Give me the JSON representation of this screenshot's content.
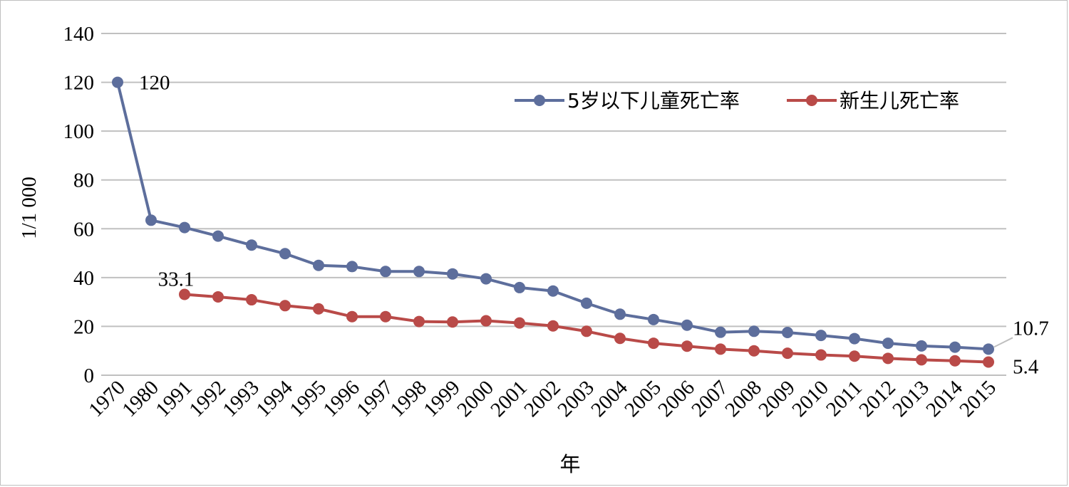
{
  "chart_data": {
    "type": "line",
    "xlabel": "年",
    "ylabel": "1/1 000",
    "ylim": [
      0,
      140
    ],
    "yticks": [
      "0",
      "20",
      "40",
      "60",
      "80",
      "100",
      "120",
      "140"
    ],
    "grid": true,
    "legend_position": "top-right",
    "categories": [
      "1970",
      "1980",
      "1991",
      "1992",
      "1993",
      "1994",
      "1995",
      "1996",
      "1997",
      "1998",
      "1999",
      "2000",
      "2001",
      "2002",
      "2003",
      "2004",
      "2005",
      "2006",
      "2007",
      "2008",
      "2009",
      "2010",
      "2011",
      "2012",
      "2013",
      "2014",
      "2015"
    ],
    "series": [
      {
        "name": "5岁以下儿童死亡率",
        "color": "#5d6e9c",
        "values": [
          120,
          63.5,
          60.5,
          57,
          53.3,
          49.8,
          45,
          44.5,
          42.5,
          42.5,
          41.5,
          39.5,
          35.9,
          34.5,
          29.5,
          25,
          22.8,
          20.5,
          17.6,
          18,
          17.5,
          16.3,
          15,
          13.1,
          12,
          11.5,
          10.7
        ]
      },
      {
        "name": "新生儿死亡率",
        "color": "#b94a48",
        "values": [
          null,
          null,
          33.1,
          32.1,
          30.9,
          28.5,
          27.2,
          24,
          24,
          22,
          21.8,
          22.3,
          21.4,
          20.2,
          18,
          15.1,
          13.1,
          11.9,
          10.7,
          10,
          9,
          8.3,
          7.8,
          6.9,
          6.3,
          5.9,
          5.4
        ]
      }
    ],
    "annotations": [
      {
        "series": 0,
        "index": 0,
        "text": "120"
      },
      {
        "series": 1,
        "index": 2,
        "text": "33.1"
      },
      {
        "series": 0,
        "index": 26,
        "text": "10.7"
      },
      {
        "series": 1,
        "index": 26,
        "text": "5.4"
      }
    ]
  }
}
